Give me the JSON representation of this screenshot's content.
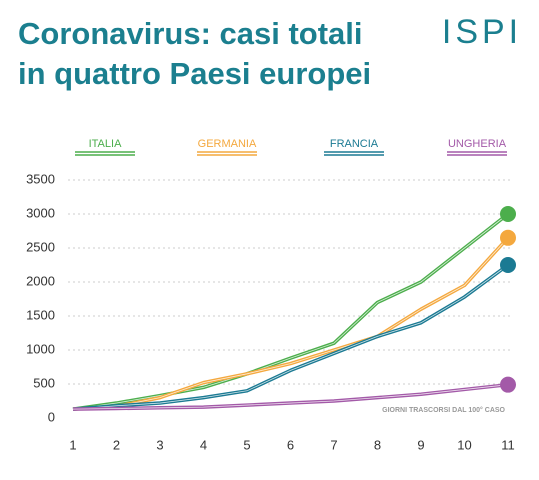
{
  "chart_data": {
    "type": "line",
    "title_lines": [
      "Coronavirus: casi totali",
      "in quattro Paesi europei"
    ],
    "logo": "ISPI",
    "annotation": "GIORNI TRASCORSI DAL 100° CASO",
    "x": [
      1,
      2,
      3,
      4,
      5,
      6,
      7,
      8,
      9,
      10,
      11
    ],
    "xlim": [
      1,
      11
    ],
    "xticks": [
      1,
      2,
      3,
      4,
      5,
      6,
      7,
      8,
      9,
      10,
      11
    ],
    "ylim": [
      0,
      3500
    ],
    "yticks": [
      0,
      500,
      1000,
      1500,
      2000,
      2500,
      3000,
      3500
    ],
    "grid": true,
    "series": [
      {
        "name": "ITALIA",
        "color": "#4cae4c",
        "values": [
          130,
          220,
          330,
          450,
          650,
          880,
          1100,
          1700,
          2000,
          2500,
          3000
        ]
      },
      {
        "name": "GERMANIA",
        "color": "#f4a83e",
        "values": [
          130,
          170,
          300,
          520,
          650,
          800,
          1000,
          1200,
          1600,
          1950,
          2650
        ]
      },
      {
        "name": "FRANCIA",
        "color": "#1b7a93",
        "values": [
          130,
          180,
          220,
          300,
          400,
          700,
          950,
          1200,
          1400,
          1780,
          2250
        ]
      },
      {
        "name": "UNGHERIA",
        "color": "#a35aa8",
        "values": [
          130,
          140,
          150,
          160,
          190,
          220,
          250,
          300,
          350,
          420,
          490
        ]
      }
    ]
  }
}
